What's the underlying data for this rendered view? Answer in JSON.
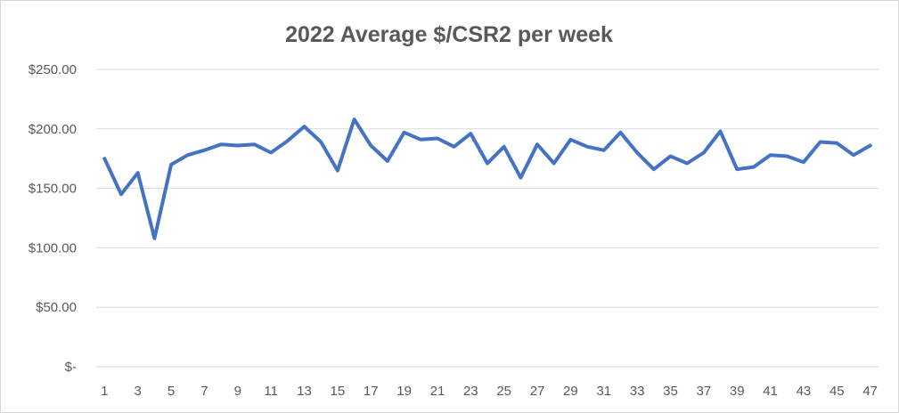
{
  "chart_data": {
    "type": "line",
    "title": "2022 Average $/CSR2 per week",
    "xlabel": "",
    "ylabel": "",
    "ylim": [
      0,
      250
    ],
    "grid": true,
    "legend": "none",
    "x": [
      1,
      2,
      3,
      4,
      5,
      6,
      7,
      8,
      9,
      10,
      11,
      12,
      13,
      14,
      15,
      16,
      17,
      18,
      19,
      20,
      21,
      22,
      23,
      24,
      25,
      26,
      27,
      28,
      29,
      30,
      31,
      32,
      33,
      34,
      35,
      36,
      37,
      38,
      39,
      40,
      41,
      42,
      43,
      44,
      45,
      46,
      47
    ],
    "x_tick_labels": [
      "1",
      "3",
      "5",
      "7",
      "9",
      "11",
      "13",
      "15",
      "17",
      "19",
      "21",
      "23",
      "25",
      "27",
      "29",
      "31",
      "33",
      "35",
      "37",
      "39",
      "41",
      "43",
      "45",
      "47"
    ],
    "y_ticks": [
      0,
      50,
      100,
      150,
      200,
      250
    ],
    "y_tick_labels": [
      "$-",
      "$50.00",
      "$100.00",
      "$150.00",
      "$200.00",
      "$250.00"
    ],
    "series": [
      {
        "color": "#4472c4",
        "values": [
          175,
          145,
          163,
          108,
          170,
          178,
          182,
          187,
          186,
          187,
          180,
          190,
          202,
          189,
          165,
          208,
          186,
          173,
          197,
          191,
          192,
          185,
          196,
          171,
          185,
          159,
          187,
          171,
          191,
          185,
          182,
          197,
          180,
          166,
          177,
          171,
          180,
          198,
          166,
          168,
          178,
          177,
          172,
          189,
          188,
          178,
          186
        ]
      }
    ]
  }
}
